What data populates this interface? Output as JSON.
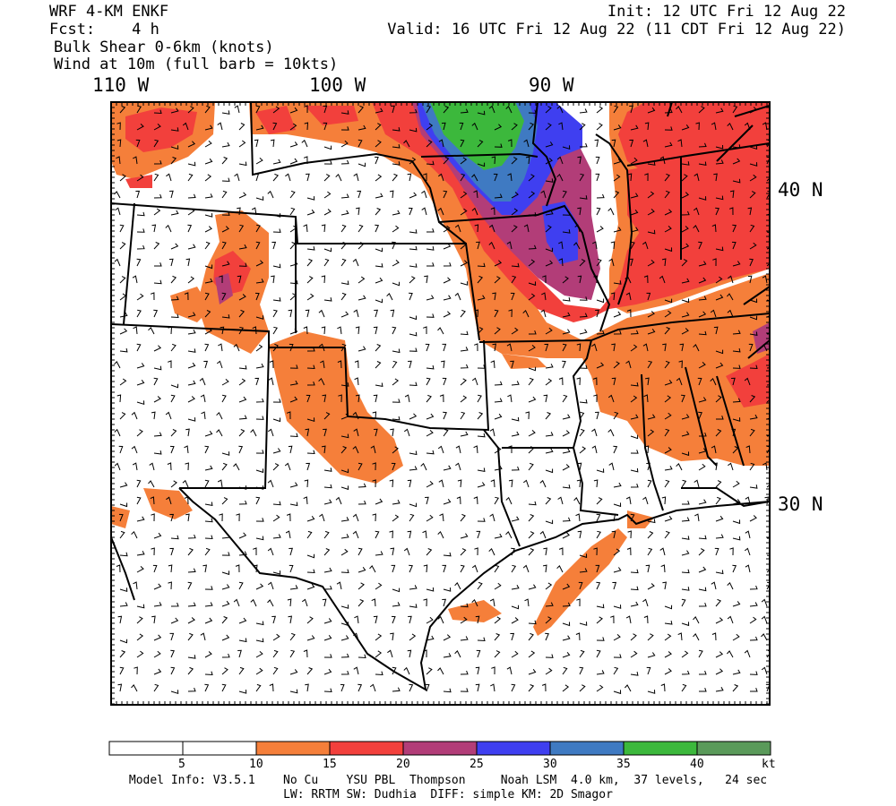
{
  "header": {
    "model": "WRF 4-KM ENKF",
    "forecast": "Fcst:    4 h",
    "field1": "Bulk Shear 0-6km (knots)",
    "field2": "Wind at 10m (full barb = 10kts)",
    "init": "Init: 12 UTC Fri 12 Aug 22",
    "valid": "Valid: 16 UTC Fri 12 Aug 22 (11 CDT Fri 12 Aug 22)"
  },
  "axes": {
    "lon_labels": [
      "110 W",
      "100 W",
      "90 W"
    ],
    "lat_labels": [
      "40 N",
      "30 N"
    ]
  },
  "colorbar": {
    "unit": "kt",
    "tick_labels": [
      "5",
      "10",
      "15",
      "20",
      "25",
      "30",
      "35",
      "40"
    ],
    "colors": [
      "#ffffff",
      "#ffffff",
      "#f57f3a",
      "#f2403c",
      "#b23d78",
      "#3f3ff0",
      "#3f7ac2",
      "#3cb83c",
      "#5a9a5a"
    ]
  },
  "field_colors": {
    "orange": "#f57f3a",
    "red": "#f2403c",
    "purple": "#b23d78",
    "blue": "#3f3ff0",
    "steelblue": "#3f7ac2",
    "green": "#3cb83c"
  },
  "footer": {
    "line1": "Model Info: V3.5.1    No Cu    YSU PBL  Thompson     Noah LSM  4.0 km,  37 levels,   24 sec",
    "line2": "LW: RRTM SW: Dudhia  DIFF: simple KM: 2D Smagor"
  }
}
